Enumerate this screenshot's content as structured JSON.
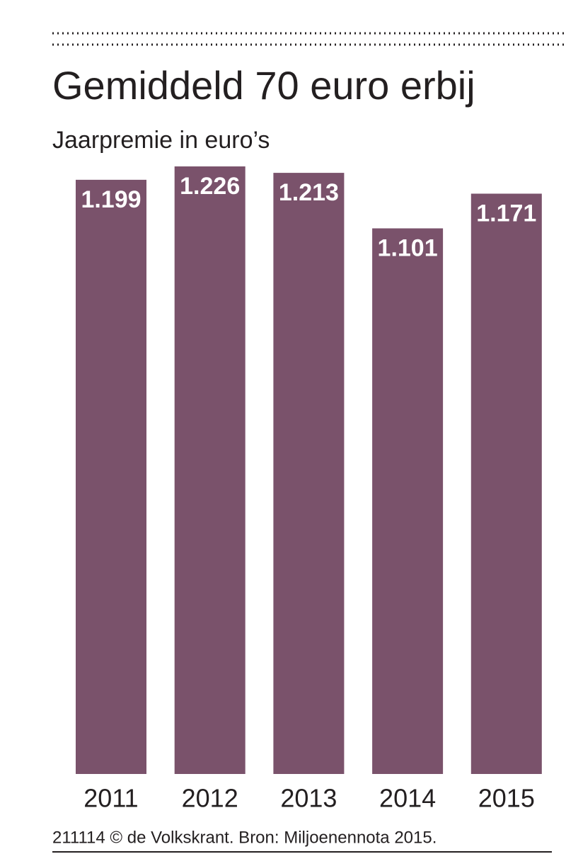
{
  "chart_data": {
    "type": "bar",
    "title": "Gemiddeld 70 euro erbij",
    "subtitle": "Jaarpremie in euro’s",
    "categories": [
      "2011",
      "2012",
      "2013",
      "2014",
      "2015"
    ],
    "values": [
      1199,
      1226,
      1213,
      1101,
      1171
    ],
    "value_labels": [
      "1.199",
      "1.226",
      "1.213",
      "1.101",
      "1.171"
    ],
    "color": "#7a526b",
    "source": "211114 © de Volkskrant. Bron: Miljoenennota 2015."
  }
}
